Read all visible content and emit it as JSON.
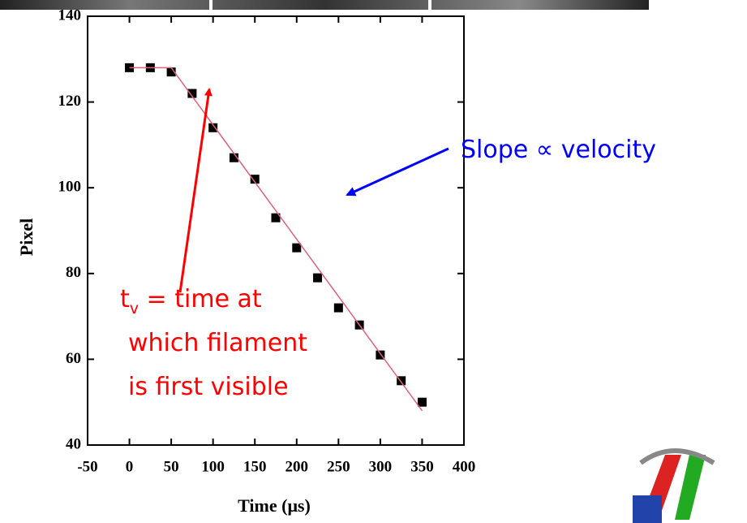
{
  "chart_data": {
    "type": "scatter",
    "x_label": "Time (μs)",
    "y_label": "Pixel",
    "xlim": [
      -50,
      400
    ],
    "ylim": [
      40,
      140
    ],
    "xticks": [
      -50,
      0,
      50,
      100,
      150,
      200,
      250,
      300,
      350,
      400
    ],
    "yticks": [
      40,
      60,
      80,
      100,
      120,
      140
    ],
    "series": [
      {
        "color": "#000000",
        "x": [
          0,
          25,
          50,
          75,
          100,
          125,
          150,
          175,
          200,
          225,
          250,
          275,
          300,
          325,
          350
        ],
        "values": [
          128,
          128,
          127,
          122,
          114,
          107,
          102,
          93,
          86,
          79,
          72,
          68,
          61,
          55,
          50
        ]
      },
      {
        "type": "line",
        "color": "#e0607a",
        "x": [
          0,
          50,
          350
        ],
        "values": [
          128,
          128,
          48
        ]
      }
    ],
    "annotations": {
      "slope": "Slope ∝ velocity",
      "tv_symbol": "t",
      "tv_subscript": "v",
      "tv_lines": [
        " = time at",
        "which filament",
        "is first visible"
      ]
    }
  }
}
